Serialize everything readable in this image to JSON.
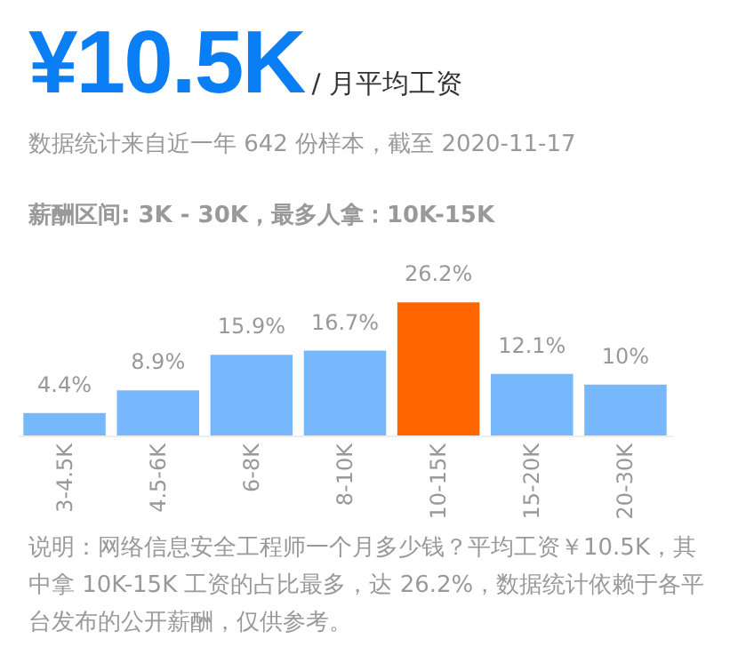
{
  "chart_data": {
    "type": "bar",
    "title": "¥10.5K",
    "subtitle": "/ 月平均工资",
    "annotations": [
      "数据统计来自近一年 642 份样本，截至 2020-11-17",
      "薪酬区间: 3K - 30K，最多人拿：10K-15K",
      "说明：网络信息安全工程师一个月多少钱？平均工资￥10.5K，其中拿 10K-15K 工资的占比最多，达 26.2%，数据统计依赖于各平台发布的公开薪酬，仅供参考。"
    ],
    "categories": [
      "3-4.5K",
      "4.5-6K",
      "6-8K",
      "8-10K",
      "10-15K",
      "15-20K",
      "20-30K"
    ],
    "values": [
      4.4,
      8.9,
      15.9,
      16.7,
      26.2,
      12.1,
      10
    ],
    "value_labels": [
      "4.4%",
      "8.9%",
      "15.9%",
      "16.7%",
      "26.2%",
      "12.1%",
      "10%"
    ],
    "colors": [
      "#77b7fb",
      "#77b7fb",
      "#77b7fb",
      "#77b7fb",
      "#ff6600",
      "#77b7fb",
      "#77b7fb"
    ]
  }
}
